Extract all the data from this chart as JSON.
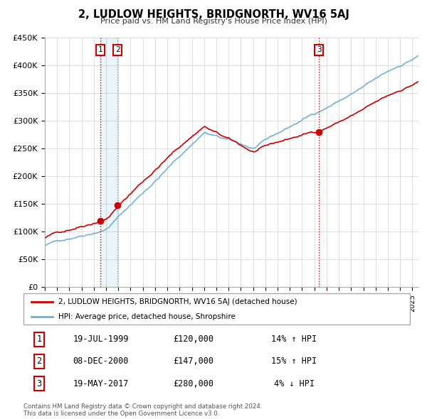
{
  "title": "2, LUDLOW HEIGHTS, BRIDGNORTH, WV16 5AJ",
  "subtitle": "Price paid vs. HM Land Registry's House Price Index (HPI)",
  "legend_label_red": "2, LUDLOW HEIGHTS, BRIDGNORTH, WV16 5AJ (detached house)",
  "legend_label_blue": "HPI: Average price, detached house, Shropshire",
  "footer_line1": "Contains HM Land Registry data © Crown copyright and database right 2024.",
  "footer_line2": "This data is licensed under the Open Government Licence v3.0.",
  "transactions": [
    {
      "num": 1,
      "date": "19-JUL-1999",
      "price": 120000,
      "hpi_pct": "14%",
      "hpi_dir": "↑"
    },
    {
      "num": 2,
      "date": "08-DEC-2000",
      "price": 147000,
      "hpi_pct": "15%",
      "hpi_dir": "↑"
    },
    {
      "num": 3,
      "date": "19-MAY-2017",
      "price": 280000,
      "hpi_pct": "4%",
      "hpi_dir": "↓"
    }
  ],
  "transaction_dates_decimal": [
    1999.542,
    2000.936,
    2017.38
  ],
  "transaction_prices": [
    120000,
    147000,
    280000
  ],
  "ylim": [
    0,
    450000
  ],
  "yticks": [
    0,
    50000,
    100000,
    150000,
    200000,
    250000,
    300000,
    350000,
    400000,
    450000
  ],
  "xlim_start": 1995.0,
  "xlim_end": 2025.5,
  "red_color": "#cc0000",
  "blue_color": "#6baed6",
  "background_color": "#ffffff",
  "grid_color": "#d0d0d0"
}
